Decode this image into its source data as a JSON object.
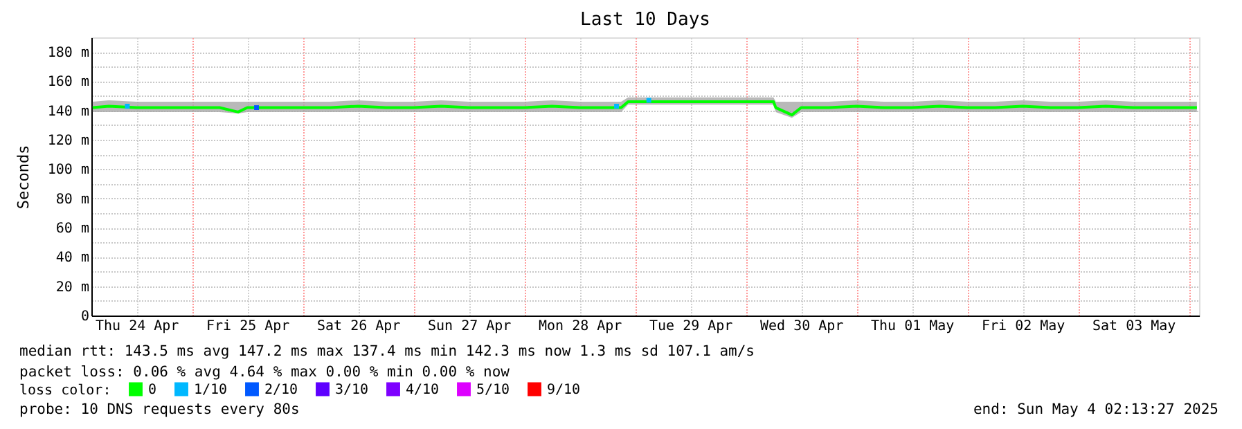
{
  "chart_data": {
    "type": "line",
    "title": "Last 10 Days",
    "ylabel": "Seconds",
    "xlim": [
      "2025-04-24T02:13",
      "2025-05-04T02:13"
    ],
    "xticks": [
      {
        "value": "2025-04-24T12:00",
        "label": "Thu 24 Apr"
      },
      {
        "value": "2025-04-25T00:00",
        "label": null
      },
      {
        "value": "2025-04-25T12:00",
        "label": "Fri 25 Apr"
      },
      {
        "value": "2025-04-26T00:00",
        "label": null
      },
      {
        "value": "2025-04-26T12:00",
        "label": "Sat 26 Apr"
      },
      {
        "value": "2025-04-27T00:00",
        "label": null
      },
      {
        "value": "2025-04-27T12:00",
        "label": "Sun 27 Apr"
      },
      {
        "value": "2025-04-28T00:00",
        "label": null
      },
      {
        "value": "2025-04-28T12:00",
        "label": "Mon 28 Apr"
      },
      {
        "value": "2025-04-29T00:00",
        "label": null
      },
      {
        "value": "2025-04-29T12:00",
        "label": "Tue 29 Apr"
      },
      {
        "value": "2025-04-30T00:00",
        "label": null
      },
      {
        "value": "2025-04-30T12:00",
        "label": "Wed 30 Apr"
      },
      {
        "value": "2025-05-01T00:00",
        "label": null
      },
      {
        "value": "2025-05-01T12:00",
        "label": "Thu 01 May"
      },
      {
        "value": "2025-05-02T00:00",
        "label": null
      },
      {
        "value": "2025-05-02T12:00",
        "label": "Fri 02 May"
      },
      {
        "value": "2025-05-03T00:00",
        "label": null
      },
      {
        "value": "2025-05-03T12:00",
        "label": "Sat 03 May"
      },
      {
        "value": "2025-05-04T00:00",
        "label": null
      }
    ],
    "ylim": [
      0,
      190
    ],
    "yticks": [
      0,
      {
        "value": 10,
        "label": null
      },
      {
        "value": 20,
        "label": "20 m"
      },
      {
        "value": 30,
        "label": null
      },
      {
        "value": 40,
        "label": "40 m"
      },
      {
        "value": 50,
        "label": null
      },
      {
        "value": 60,
        "label": "60 m"
      },
      {
        "value": 70,
        "label": null
      },
      {
        "value": 80,
        "label": "80 m"
      },
      {
        "value": 90,
        "label": null
      },
      {
        "value": 100,
        "label": "100 m"
      },
      {
        "value": 110,
        "label": null
      },
      {
        "value": 120,
        "label": "120 m"
      },
      {
        "value": 130,
        "label": null
      },
      {
        "value": 140,
        "label": "140 m"
      },
      {
        "value": 150,
        "label": null
      },
      {
        "value": 160,
        "label": "160 m"
      },
      {
        "value": 170,
        "label": null
      },
      {
        "value": 180,
        "label": "180 m"
      }
    ],
    "grid": true,
    "legend": "bottom left",
    "legend_title": "loss color:",
    "annotations": [
      "median rtt:  143.5 ms avg  147.2 ms max  137.4 ms min  142.3 ms now  1.3 ms sd  107.1   am/s",
      "packet loss: 0.06 % avg  4.64 % max  0.00 % min  0.00 % now",
      "probe:       10 DNS requests every 80s",
      "end: Sun May  4 02:13:27 2025"
    ],
    "series": [
      {
        "name": "0",
        "color": "#00ff00",
        "x": [
          "2025-04-24T02:30",
          "2025-04-24T06:00",
          "2025-04-24T12:00",
          "2025-04-24T18:00",
          "2025-04-25T00:00",
          "2025-04-25T06:00",
          "2025-04-25T10:00",
          "2025-04-25T12:00",
          "2025-04-25T18:00",
          "2025-04-26T00:00",
          "2025-04-26T06:00",
          "2025-04-26T12:00",
          "2025-04-26T18:00",
          "2025-04-27T00:00",
          "2025-04-27T06:00",
          "2025-04-27T12:00",
          "2025-04-27T18:00",
          "2025-04-28T00:00",
          "2025-04-28T06:00",
          "2025-04-28T12:00",
          "2025-04-28T18:00",
          "2025-04-28T21:00",
          "2025-04-28T22:30",
          "2025-04-29T06:00",
          "2025-04-29T12:00",
          "2025-04-29T18:00",
          "2025-04-30T00:00",
          "2025-04-30T06:00",
          "2025-04-30T06:30",
          "2025-04-30T10:00",
          "2025-04-30T12:00",
          "2025-04-30T18:00",
          "2025-05-01T00:00",
          "2025-05-01T06:00",
          "2025-05-01T12:00",
          "2025-05-01T18:00",
          "2025-05-02T00:00",
          "2025-05-02T06:00",
          "2025-05-02T12:00",
          "2025-05-02T18:00",
          "2025-05-03T00:00",
          "2025-05-03T06:00",
          "2025-05-03T12:00",
          "2025-05-03T18:00",
          "2025-05-04T01:45"
        ],
        "values": [
          142,
          143,
          142,
          142,
          142,
          142,
          139,
          142,
          142,
          142,
          142,
          143,
          142,
          142,
          143,
          142,
          142,
          142,
          143,
          142,
          142,
          142,
          146,
          146,
          146,
          146,
          146,
          146,
          142,
          137,
          142,
          142,
          143,
          142,
          142,
          143,
          142,
          142,
          143,
          142,
          142,
          143,
          142,
          142,
          142
        ],
        "lower": [
          139,
          139,
          139,
          139,
          139,
          139,
          138,
          139,
          139,
          139,
          139,
          139,
          139,
          139,
          139,
          139,
          139,
          139,
          139,
          139,
          139,
          139,
          144,
          144,
          144,
          144,
          144,
          144,
          139,
          135,
          139,
          139,
          139,
          139,
          139,
          139,
          139,
          139,
          139,
          139,
          139,
          139,
          139,
          139,
          139
        ],
        "upper": [
          146,
          147,
          146,
          146,
          146,
          146,
          146,
          146,
          146,
          146,
          146,
          147,
          146,
          146,
          147,
          146,
          146,
          146,
          147,
          146,
          146,
          146,
          149,
          149,
          149,
          149,
          149,
          149,
          146,
          146,
          146,
          146,
          147,
          146,
          146,
          147,
          146,
          146,
          147,
          146,
          146,
          147,
          146,
          146,
          146
        ]
      },
      {
        "name": "1/10",
        "type": "scatter",
        "color": "#00b8ff",
        "x": [
          "2025-04-24T10:00",
          "2025-04-28T20:00",
          "2025-04-29T03:00"
        ],
        "values": [
          143,
          143,
          147
        ]
      },
      {
        "name": "2/10",
        "type": "scatter",
        "color": "#0059ff",
        "x": [
          "2025-04-25T14:00"
        ],
        "values": [
          142
        ]
      },
      {
        "name": "3/10",
        "color": "#5e00ff"
      },
      {
        "name": "4/10",
        "color": "#7e00ff"
      },
      {
        "name": "5/10",
        "color": "#dd00ff"
      },
      {
        "name": "9/10",
        "color": "#ff0000"
      }
    ]
  }
}
